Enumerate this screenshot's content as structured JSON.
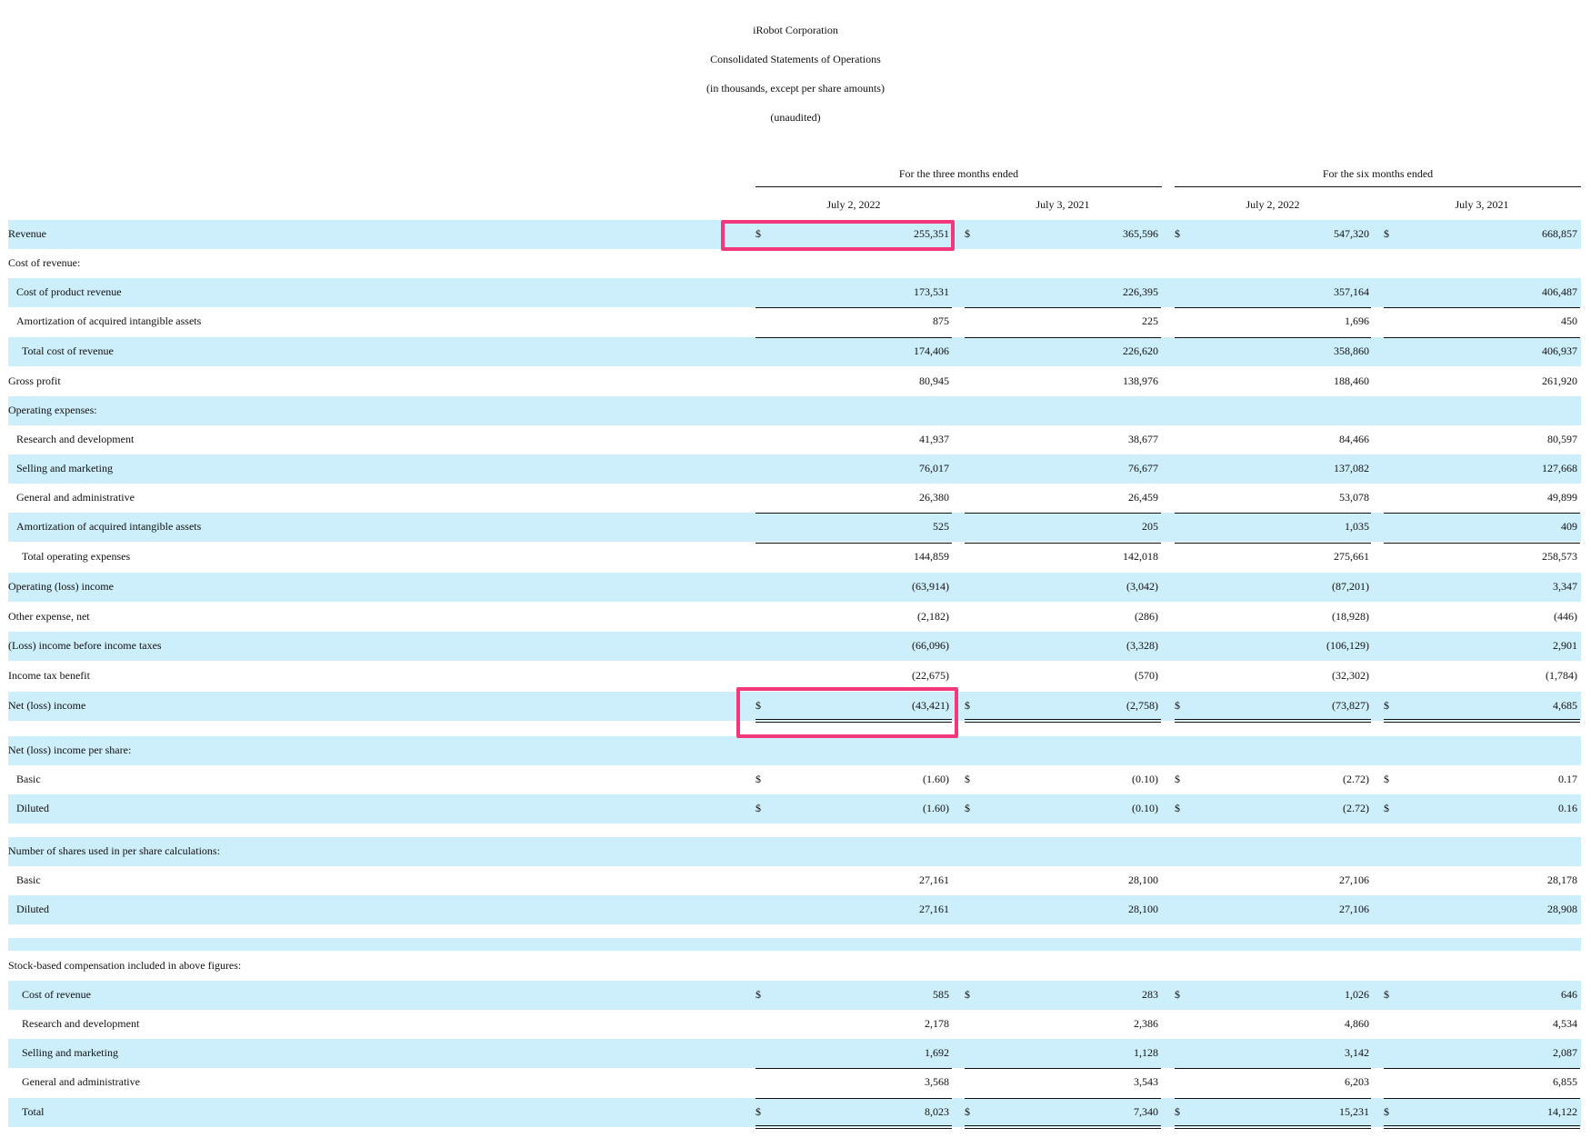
{
  "header": {
    "company": "iRobot Corporation",
    "statement": "Consolidated Statements of Operations",
    "units": "(in thousands, except per share amounts)",
    "status": "(unaudited)"
  },
  "period_groups": [
    "For the three months ended",
    "For the six months ended"
  ],
  "columns": [
    "July 2, 2022",
    "July 3, 2021",
    "July 2, 2022",
    "July 3, 2021"
  ],
  "currency_symbol": "$",
  "rows": [
    {
      "label": "Revenue",
      "values": [
        "255,351",
        "365,596",
        "547,320",
        "668,857"
      ],
      "dollar": true
    },
    {
      "label": "Cost of revenue:",
      "values": []
    },
    {
      "label": "Cost of product revenue",
      "values": [
        "173,531",
        "226,395",
        "357,164",
        "406,487"
      ]
    },
    {
      "label": "Amortization of acquired intangible assets",
      "values": [
        "875",
        "225",
        "1,696",
        "450"
      ]
    },
    {
      "label": "Total cost of revenue",
      "values": [
        "174,406",
        "226,620",
        "358,860",
        "406,937"
      ]
    },
    {
      "label": "Gross profit",
      "values": [
        "80,945",
        "138,976",
        "188,460",
        "261,920"
      ]
    },
    {
      "label": "Operating expenses:",
      "values": []
    },
    {
      "label": "Research and development",
      "values": [
        "41,937",
        "38,677",
        "84,466",
        "80,597"
      ]
    },
    {
      "label": "Selling and marketing",
      "values": [
        "76,017",
        "76,677",
        "137,082",
        "127,668"
      ]
    },
    {
      "label": "General and administrative",
      "values": [
        "26,380",
        "26,459",
        "53,078",
        "49,899"
      ]
    },
    {
      "label": "Amortization of acquired intangible assets",
      "values": [
        "525",
        "205",
        "1,035",
        "409"
      ]
    },
    {
      "label": "Total operating expenses",
      "values": [
        "144,859",
        "142,018",
        "275,661",
        "258,573"
      ]
    },
    {
      "label": "Operating (loss) income",
      "values": [
        "(63,914)",
        "(3,042)",
        "(87,201)",
        "3,347"
      ]
    },
    {
      "label": "Other expense, net",
      "values": [
        "(2,182)",
        "(286)",
        "(18,928)",
        "(446)"
      ]
    },
    {
      "label": "(Loss) income before income taxes",
      "values": [
        "(66,096)",
        "(3,328)",
        "(106,129)",
        "2,901"
      ]
    },
    {
      "label": "Income tax benefit",
      "values": [
        "(22,675)",
        "(570)",
        "(32,302)",
        "(1,784)"
      ]
    },
    {
      "label": "Net (loss) income",
      "values": [
        "(43,421)",
        "(2,758)",
        "(73,827)",
        "4,685"
      ],
      "dollar": true
    },
    {
      "label": "Net (loss) income per share:",
      "values": []
    },
    {
      "label": "Basic",
      "values": [
        "(1.60)",
        "(0.10)",
        "(2.72)",
        "0.17"
      ],
      "dollar": true
    },
    {
      "label": "Diluted",
      "values": [
        "(1.60)",
        "(0.10)",
        "(2.72)",
        "0.16"
      ],
      "dollar": true
    },
    {
      "label": "Number of shares used in per share calculations:",
      "values": []
    },
    {
      "label": "Basic",
      "values": [
        "27,161",
        "28,100",
        "27,106",
        "28,178"
      ]
    },
    {
      "label": "Diluted",
      "values": [
        "27,161",
        "28,100",
        "27,106",
        "28,908"
      ]
    },
    {
      "label": "",
      "values": []
    },
    {
      "label": "Stock-based compensation included in above figures:",
      "values": []
    },
    {
      "label": "Cost of revenue",
      "values": [
        "585",
        "283",
        "1,026",
        "646"
      ],
      "dollar": true
    },
    {
      "label": "Research and development",
      "values": [
        "2,178",
        "2,386",
        "4,860",
        "4,534"
      ]
    },
    {
      "label": "Selling and marketing",
      "values": [
        "1,692",
        "1,128",
        "3,142",
        "2,087"
      ]
    },
    {
      "label": "General and administrative",
      "values": [
        "3,568",
        "3,543",
        "6,203",
        "6,855"
      ]
    },
    {
      "label": "Total",
      "values": [
        "8,023",
        "7,340",
        "15,231",
        "14,122"
      ],
      "dollar": true
    }
  ]
}
